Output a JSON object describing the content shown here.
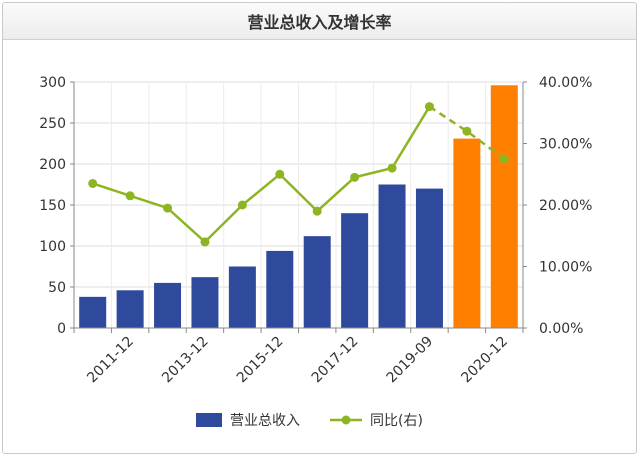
{
  "chart_data": {
    "type": "bar",
    "title": "营业总收入及增长率",
    "categories": [
      "",
      "2011-12",
      "",
      "2013-12",
      "",
      "2015-12",
      "",
      "2017-12",
      "",
      "2019-09",
      "",
      "2020-12"
    ],
    "series": [
      {
        "name": "营业总收入",
        "type": "bar",
        "axis": "left",
        "values": [
          38,
          46,
          55,
          62,
          75,
          94,
          112,
          140,
          175,
          170,
          231,
          296
        ],
        "colors": [
          "#2f4a9c",
          "#2f4a9c",
          "#2f4a9c",
          "#2f4a9c",
          "#2f4a9c",
          "#2f4a9c",
          "#2f4a9c",
          "#2f4a9c",
          "#2f4a9c",
          "#2f4a9c",
          "#ff7f00",
          "#ff7f00"
        ]
      },
      {
        "name": "同比(右)",
        "type": "line",
        "axis": "right",
        "color": "#8db521",
        "values": [
          23.5,
          21.5,
          19.5,
          14.0,
          20.0,
          25.0,
          19.0,
          24.5,
          26.0,
          36.0,
          32.0,
          27.5
        ],
        "dashed_from_index": 9
      }
    ],
    "y_left": {
      "min": 0,
      "max": 300,
      "ticks": [
        "0",
        "50",
        "100",
        "150",
        "200",
        "250",
        "300"
      ]
    },
    "y_right": {
      "min": 0,
      "max": 40,
      "ticks": [
        "0.00%",
        "10.00%",
        "20.00%",
        "30.00%",
        "40.00%"
      ]
    },
    "grid": true,
    "legend_position": "bottom"
  }
}
